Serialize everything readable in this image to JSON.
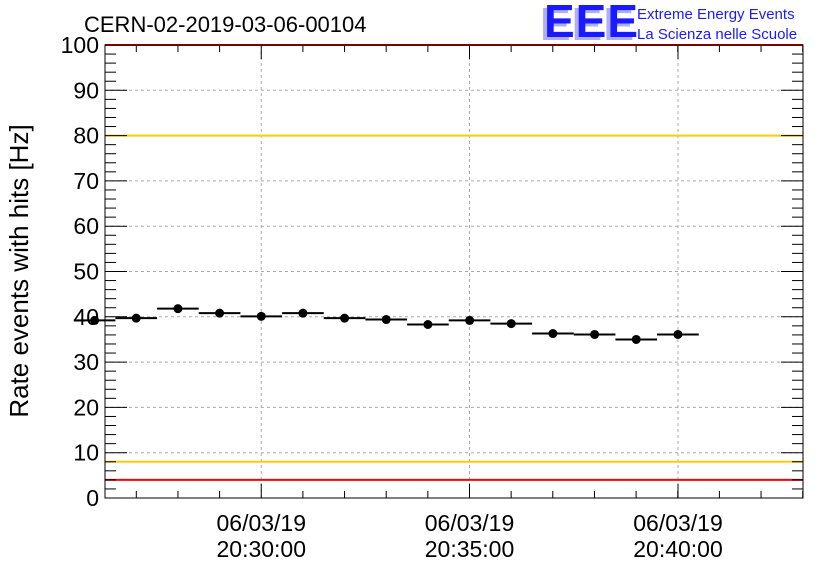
{
  "chart_data": {
    "type": "scatter",
    "title": "CERN-02-2019-03-06-00104",
    "ylabel": "Rate events with hits [Hz]",
    "xlabel": "",
    "ylim": [
      0,
      100
    ],
    "y_ticks": [
      "0",
      "10",
      "20",
      "30",
      "40",
      "50",
      "60",
      "70",
      "80",
      "90",
      "100"
    ],
    "x_tick_labels": [
      {
        "date": "06/03/19",
        "time": "20:30:00"
      },
      {
        "date": "06/03/19",
        "time": "20:35:00"
      },
      {
        "date": "06/03/19",
        "time": "20:40:00"
      }
    ],
    "x_unit": "minutes",
    "xlim": [
      20.4375,
      20.7167
    ],
    "x_tick_values": [
      20.5,
      20.5833,
      20.6667
    ],
    "grid": true,
    "bin_width_min": 1,
    "points": [
      {
        "x": "20:26:00",
        "y": 39.2
      },
      {
        "x": "20:27:00",
        "y": 39.7
      },
      {
        "x": "20:28:00",
        "y": 41.8
      },
      {
        "x": "20:29:00",
        "y": 40.8
      },
      {
        "x": "20:30:00",
        "y": 40.1
      },
      {
        "x": "20:31:00",
        "y": 40.8
      },
      {
        "x": "20:32:00",
        "y": 39.7
      },
      {
        "x": "20:33:00",
        "y": 39.4
      },
      {
        "x": "20:34:00",
        "y": 38.3
      },
      {
        "x": "20:35:00",
        "y": 39.2
      },
      {
        "x": "20:36:00",
        "y": 38.5
      },
      {
        "x": "20:37:00",
        "y": 36.3
      },
      {
        "x": "20:38:00",
        "y": 36.1
      },
      {
        "x": "20:39:00",
        "y": 35.0
      },
      {
        "x": "20:40:00",
        "y": 36.1
      }
    ],
    "reference_lines": [
      {
        "y": 100,
        "color": "#ff0000"
      },
      {
        "y": 80,
        "color": "#ffcc00"
      },
      {
        "y": 8,
        "color": "#ffcc00"
      },
      {
        "y": 4,
        "color": "#ff0000"
      }
    ],
    "colors": {
      "points": "#000000",
      "grid": "#aaaaaa"
    }
  },
  "logo": {
    "text": "EEE",
    "line1": "Extreme Energy Events",
    "line2": "La Scienza nelle Scuole",
    "color": "#1a1aff"
  }
}
